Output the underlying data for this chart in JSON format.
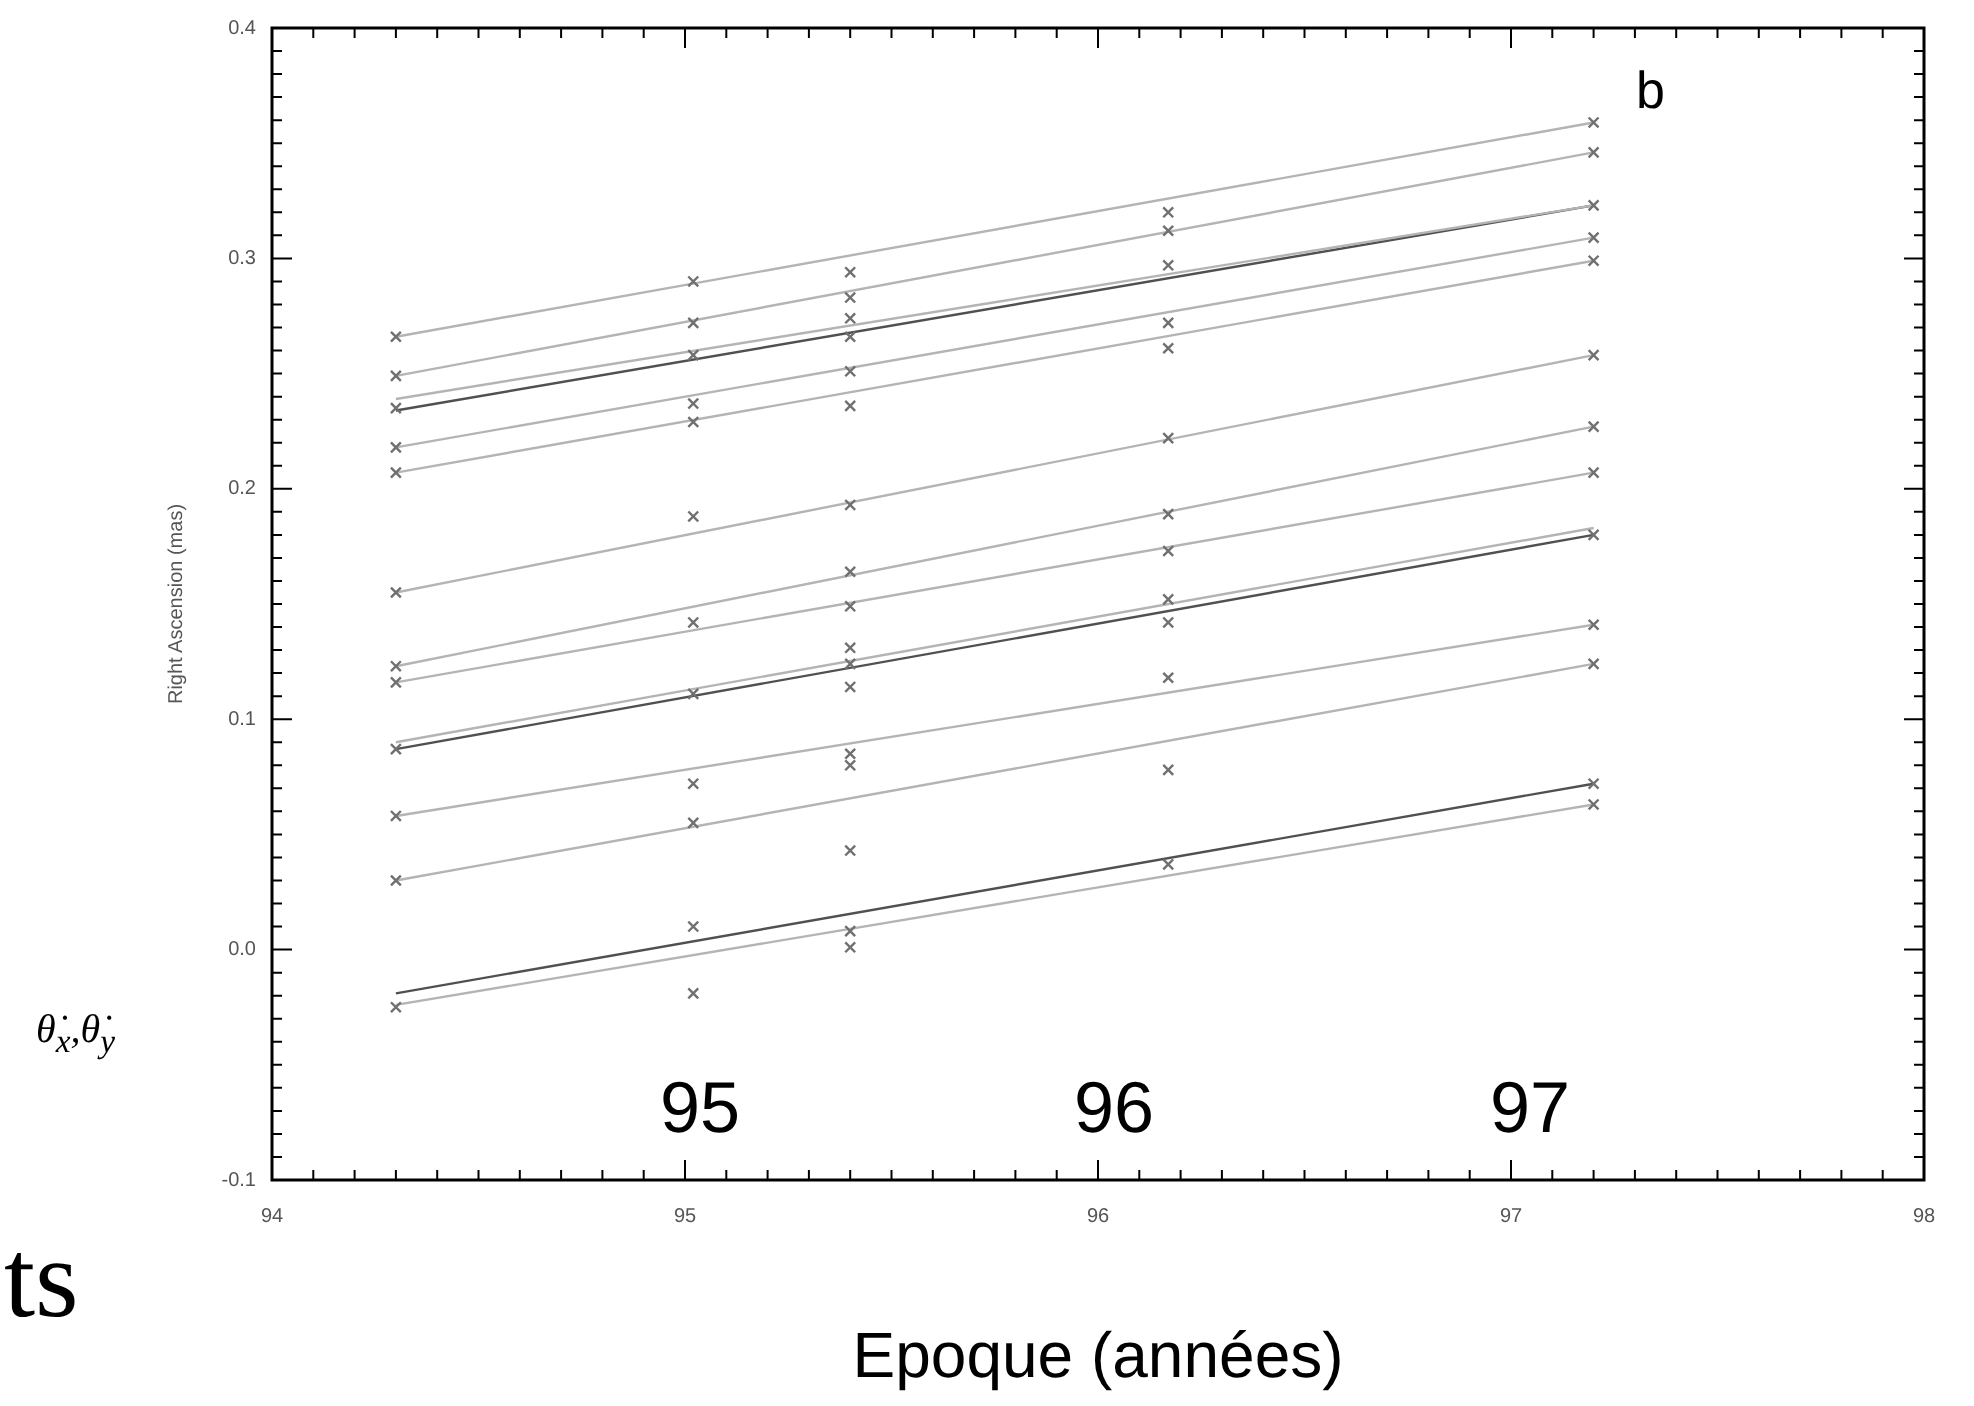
{
  "chart_data": {
    "type": "scatter",
    "xlabel": "Epoque (années)",
    "ylabel": "Right Ascension (mas)",
    "annotations": [
      "b",
      "95",
      "96",
      "97",
      "θ̇$_{x}$,θ̇$_{y}$",
      "ts"
    ],
    "xlim": [
      94,
      98
    ],
    "ylim": [
      -0.1,
      0.4
    ],
    "xticks": [
      94,
      {
        "value": 94.1,
        "label": null
      },
      {
        "value": 94.2,
        "label": null
      },
      {
        "value": 94.3,
        "label": null
      },
      {
        "value": 94.4,
        "label": null
      },
      {
        "value": 94.5,
        "label": null
      },
      {
        "value": 94.6,
        "label": null
      },
      {
        "value": 94.7,
        "label": null
      },
      {
        "value": 94.8,
        "label": null
      },
      {
        "value": 94.9,
        "label": null
      },
      95,
      {
        "value": 95.1,
        "label": null
      },
      {
        "value": 95.2,
        "label": null
      },
      {
        "value": 95.3,
        "label": null
      },
      {
        "value": 95.4,
        "label": null
      },
      {
        "value": 95.5,
        "label": null
      },
      {
        "value": 95.6,
        "label": null
      },
      {
        "value": 95.7,
        "label": null
      },
      {
        "value": 95.8,
        "label": null
      },
      {
        "value": 95.9,
        "label": null
      },
      96,
      {
        "value": 96.1,
        "label": null
      },
      {
        "value": 96.2,
        "label": null
      },
      {
        "value": 96.3,
        "label": null
      },
      {
        "value": 96.4,
        "label": null
      },
      {
        "value": 96.5,
        "label": null
      },
      {
        "value": 96.6,
        "label": null
      },
      {
        "value": 96.7,
        "label": null
      },
      {
        "value": 96.8,
        "label": null
      },
      {
        "value": 96.9,
        "label": null
      },
      97,
      {
        "value": 97.1,
        "label": null
      },
      {
        "value": 97.2,
        "label": null
      },
      {
        "value": 97.3,
        "label": null
      },
      {
        "value": 97.4,
        "label": null
      },
      {
        "value": 97.5,
        "label": null
      },
      {
        "value": 97.6,
        "label": null
      },
      {
        "value": 97.7,
        "label": null
      },
      {
        "value": 97.8,
        "label": null
      },
      {
        "value": 97.9,
        "label": null
      },
      98
    ],
    "yticks": [
      -0.1,
      {
        "value": -0.09,
        "label": null
      },
      {
        "value": -0.08,
        "label": null
      },
      {
        "value": -0.07,
        "label": null
      },
      {
        "value": -0.06,
        "label": null
      },
      {
        "value": -0.05,
        "label": null
      },
      {
        "value": -0.04,
        "label": null
      },
      {
        "value": -0.03,
        "label": null
      },
      {
        "value": -0.02,
        "label": null
      },
      {
        "value": -0.01,
        "label": null
      },
      {
        "value": 0,
        "label": "0.0"
      },
      {
        "value": 0.01,
        "label": null
      },
      {
        "value": 0.02,
        "label": null
      },
      {
        "value": 0.03,
        "label": null
      },
      {
        "value": 0.04,
        "label": null
      },
      {
        "value": 0.05,
        "label": null
      },
      {
        "value": 0.06,
        "label": null
      },
      {
        "value": 0.07,
        "label": null
      },
      {
        "value": 0.08,
        "label": null
      },
      {
        "value": 0.09,
        "label": null
      },
      0.1,
      {
        "value": 0.11,
        "label": null
      },
      {
        "value": 0.12,
        "label": null
      },
      {
        "value": 0.13,
        "label": null
      },
      {
        "value": 0.14,
        "label": null
      },
      {
        "value": 0.15,
        "label": null
      },
      {
        "value": 0.16,
        "label": null
      },
      {
        "value": 0.17,
        "label": null
      },
      {
        "value": 0.18,
        "label": null
      },
      {
        "value": 0.19,
        "label": null
      },
      0.2,
      {
        "value": 0.21,
        "label": null
      },
      {
        "value": 0.22,
        "label": null
      },
      {
        "value": 0.23,
        "label": null
      },
      {
        "value": 0.24,
        "label": null
      },
      {
        "value": 0.25,
        "label": null
      },
      {
        "value": 0.26,
        "label": null
      },
      {
        "value": 0.27,
        "label": null
      },
      {
        "value": 0.28,
        "label": null
      },
      {
        "value": 0.29,
        "label": null
      },
      0.3,
      {
        "value": 0.31,
        "label": null
      },
      {
        "value": 0.32,
        "label": null
      },
      {
        "value": 0.33,
        "label": null
      },
      {
        "value": 0.34,
        "label": null
      },
      {
        "value": 0.35,
        "label": null
      },
      {
        "value": 0.36,
        "label": null
      },
      {
        "value": 0.37,
        "label": null
      },
      {
        "value": 0.38,
        "label": null
      },
      {
        "value": 0.39,
        "label": null
      },
      0.4
    ],
    "series": [
      {
        "type": "scatter",
        "color": "#707070",
        "marker": "cross",
        "x": [
          94.3,
          94.3,
          94.3,
          94.3,
          94.3,
          94.3,
          94.3,
          94.3,
          94.3,
          94.3,
          94.3,
          94.3,
          95.02,
          95.02,
          95.02,
          95.02,
          95.02,
          95.02,
          95.02,
          95.02,
          95.02,
          95.02,
          95.02,
          95.02,
          95.4,
          95.4,
          95.4,
          95.4,
          95.4,
          95.4,
          95.4,
          95.4,
          95.4,
          95.4,
          95.4,
          95.4,
          95.4,
          95.4,
          95.4,
          95.4,
          95.4,
          96.17,
          96.17,
          96.17,
          96.17,
          96.17,
          96.17,
          96.17,
          96.17,
          96.17,
          96.17,
          96.17,
          96.17,
          96.17,
          97.2,
          97.2,
          97.2,
          97.2,
          97.2,
          97.2,
          97.2,
          97.2,
          97.2,
          97.2,
          97.2,
          97.2,
          97.2
        ],
        "values": [
          0.266,
          0.249,
          0.235,
          0.218,
          0.207,
          0.155,
          0.123,
          0.116,
          0.087,
          0.058,
          0.03,
          -0.025,
          0.29,
          0.272,
          0.258,
          0.237,
          0.229,
          0.188,
          0.142,
          0.111,
          0.072,
          0.055,
          0.01,
          -0.019,
          0.294,
          0.283,
          0.274,
          0.266,
          0.251,
          0.236,
          0.193,
          0.164,
          0.149,
          0.131,
          0.124,
          0.114,
          0.085,
          0.08,
          0.043,
          0.008,
          0.001,
          0.32,
          0.312,
          0.297,
          0.272,
          0.261,
          0.222,
          0.189,
          0.173,
          0.152,
          0.142,
          0.118,
          0.078,
          0.037,
          0.359,
          0.346,
          0.323,
          0.309,
          0.299,
          0.258,
          0.227,
          0.207,
          0.18,
          0.141,
          0.124,
          0.072,
          0.063
        ]
      },
      {
        "type": "line",
        "color": "#b4b4b4",
        "marker": "none",
        "x": [
          94.3,
          97.2
        ],
        "values": [
          0.266,
          0.359
        ]
      },
      {
        "type": "line",
        "color": "#b4b4b4",
        "marker": "none",
        "x": [
          94.3,
          97.2
        ],
        "values": [
          0.249,
          0.346
        ]
      },
      {
        "type": "line",
        "color": "#b4b4b4",
        "marker": "none",
        "x": [
          94.3,
          97.2
        ],
        "values": [
          0.239,
          0.323
        ]
      },
      {
        "type": "line",
        "color": "#505050",
        "marker": "none",
        "x": [
          94.3,
          97.2
        ],
        "values": [
          0.234,
          0.323
        ]
      },
      {
        "type": "line",
        "color": "#b4b4b4",
        "marker": "none",
        "x": [
          94.3,
          97.2
        ],
        "values": [
          0.218,
          0.309
        ]
      },
      {
        "type": "line",
        "color": "#b4b4b4",
        "marker": "none",
        "x": [
          94.3,
          97.2
        ],
        "values": [
          0.207,
          0.299
        ]
      },
      {
        "type": "line",
        "color": "#b4b4b4",
        "marker": "none",
        "x": [
          94.3,
          97.2
        ],
        "values": [
          0.155,
          0.258
        ]
      },
      {
        "type": "line",
        "color": "#b4b4b4",
        "marker": "none",
        "x": [
          94.3,
          97.2
        ],
        "values": [
          0.123,
          0.227
        ]
      },
      {
        "type": "line",
        "color": "#b4b4b4",
        "marker": "none",
        "x": [
          94.3,
          97.2
        ],
        "values": [
          0.116,
          0.207
        ]
      },
      {
        "type": "line",
        "color": "#b4b4b4",
        "marker": "none",
        "x": [
          94.3,
          97.2
        ],
        "values": [
          0.09,
          0.183
        ]
      },
      {
        "type": "line",
        "color": "#505050",
        "marker": "none",
        "x": [
          94.3,
          97.2
        ],
        "values": [
          0.087,
          0.18
        ]
      },
      {
        "type": "line",
        "color": "#b4b4b4",
        "marker": "none",
        "x": [
          94.3,
          97.2
        ],
        "values": [
          0.058,
          0.141
        ]
      },
      {
        "type": "line",
        "color": "#b4b4b4",
        "marker": "none",
        "x": [
          94.3,
          97.2
        ],
        "values": [
          0.03,
          0.124
        ]
      },
      {
        "type": "line",
        "color": "#505050",
        "marker": "none",
        "x": [
          94.3,
          97.2
        ],
        "values": [
          -0.019,
          0.072
        ]
      },
      {
        "type": "line",
        "color": "#b4b4b4",
        "marker": "none",
        "x": [
          94.3,
          97.2
        ],
        "values": [
          -0.024,
          0.063
        ]
      }
    ],
    "legend": false,
    "grid": false
  }
}
